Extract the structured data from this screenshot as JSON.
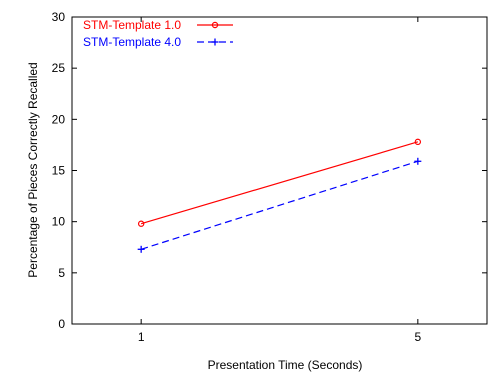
{
  "chart_data": {
    "type": "line",
    "xlabel": "Presentation Time (Seconds)",
    "ylabel": "Percentage of Pieces Correctly Recalled",
    "x": [
      1,
      5
    ],
    "x_ticks": [
      "1",
      "5"
    ],
    "xlim": [
      0,
      6
    ],
    "ylim": [
      0,
      30
    ],
    "y_ticks": [
      "0",
      "5",
      "10",
      "15",
      "20",
      "25",
      "30"
    ],
    "grid": false,
    "legend_position": "top-left",
    "series": [
      {
        "name": "STM-Template 1.0",
        "values": [
          9.8,
          17.8
        ],
        "color": "#ff0000",
        "line_style": "solid",
        "marker": "circle"
      },
      {
        "name": "STM-Template 4.0",
        "values": [
          7.3,
          15.9
        ],
        "color": "#0000ff",
        "line_style": "dashed",
        "marker": "plus"
      }
    ]
  }
}
